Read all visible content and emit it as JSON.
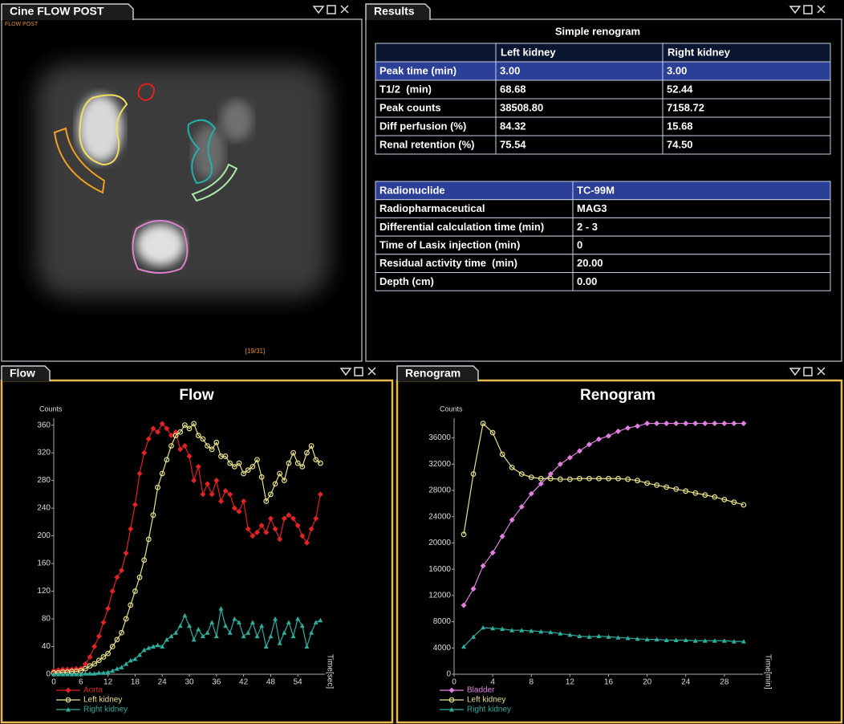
{
  "windows": {
    "cine": {
      "tab": "Cine FLOW POST",
      "label": "FLOW POST",
      "frame": "[19/31]"
    },
    "results": {
      "tab": "Results"
    },
    "flow": {
      "tab": "Flow"
    },
    "renogram": {
      "tab": "Renogram"
    }
  },
  "results": {
    "title": "Simple renogram",
    "table1": {
      "header": [
        "Left kidney",
        "Right kidney"
      ],
      "rows": [
        [
          "Peak time (min)",
          "3.00",
          "3.00"
        ],
        [
          "T1/2  (min)",
          "68.68",
          "52.44"
        ],
        [
          "Peak counts",
          "38508.80",
          "7158.72"
        ],
        [
          "Diff perfusion (%)",
          "84.32",
          "15.68"
        ],
        [
          "Renal retention (%)",
          "75.54",
          "74.50"
        ]
      ]
    },
    "table2": {
      "rows": [
        [
          "Radionuclide",
          "TC-99M"
        ],
        [
          "Radiopharmaceutical",
          "MAG3"
        ],
        [
          "Differential calculation time (min)",
          "2 - 3"
        ],
        [
          "Time of Lasix injection (min)",
          "0"
        ],
        [
          "Residual activity time  (min)",
          "20.00"
        ],
        [
          "Depth (cm)",
          "0.00"
        ]
      ]
    }
  },
  "chart_data": [
    {
      "type": "line",
      "title": "Flow",
      "y_label": "Counts",
      "x_label": "Time[sec]",
      "x": [
        0,
        1,
        2,
        3,
        4,
        5,
        6,
        7,
        8,
        9,
        10,
        11,
        12,
        13,
        14,
        15,
        16,
        17,
        18,
        19,
        20,
        21,
        22,
        23,
        24,
        25,
        26,
        27,
        28,
        29,
        30,
        31,
        32,
        33,
        34,
        35,
        36,
        37,
        38,
        39,
        40,
        41,
        42,
        43,
        44,
        45,
        46,
        47,
        48,
        49,
        50,
        51,
        52,
        53,
        54,
        55,
        56,
        57,
        58,
        59
      ],
      "xlim": [
        0,
        60
      ],
      "xticks": [
        0,
        6,
        12,
        18,
        24,
        30,
        36,
        42,
        48,
        54
      ],
      "ylim": [
        0,
        370
      ],
      "yticks": [
        0,
        40,
        80,
        120,
        160,
        200,
        240,
        280,
        320,
        360
      ],
      "series": [
        {
          "name": "Aorta",
          "color": "#e02424",
          "marker": "diamond",
          "values": [
            5,
            6,
            7,
            7,
            7,
            8,
            8,
            15,
            25,
            40,
            55,
            75,
            95,
            120,
            140,
            150,
            175,
            210,
            245,
            290,
            320,
            340,
            355,
            350,
            362,
            355,
            345,
            350,
            325,
            330,
            315,
            280,
            300,
            260,
            275,
            260,
            280,
            250,
            265,
            260,
            240,
            235,
            250,
            210,
            200,
            205,
            215,
            205,
            225,
            210,
            195,
            225,
            230,
            225,
            215,
            200,
            190,
            210,
            225,
            260
          ]
        },
        {
          "name": "Left kidney",
          "color": "#e8e28c",
          "marker": "circle",
          "values": [
            2,
            2,
            3,
            3,
            4,
            4,
            5,
            8,
            12,
            15,
            20,
            25,
            30,
            40,
            50,
            60,
            80,
            100,
            120,
            140,
            165,
            195,
            230,
            270,
            290,
            310,
            330,
            345,
            350,
            360,
            355,
            362,
            345,
            340,
            330,
            325,
            335,
            315,
            315,
            305,
            300,
            305,
            290,
            295,
            300,
            310,
            285,
            250,
            260,
            275,
            290,
            280,
            305,
            320,
            305,
            300,
            320,
            330,
            310,
            305
          ]
        },
        {
          "name": "Right kidney",
          "color": "#2fae9e",
          "marker": "triangle",
          "values": [
            0,
            0,
            0,
            0,
            0,
            0,
            0,
            1,
            1,
            1,
            2,
            2,
            3,
            5,
            8,
            10,
            15,
            20,
            22,
            28,
            35,
            38,
            40,
            42,
            40,
            50,
            55,
            60,
            70,
            85,
            70,
            50,
            65,
            55,
            60,
            75,
            55,
            95,
            70,
            60,
            80,
            75,
            55,
            60,
            75,
            55,
            70,
            40,
            55,
            80,
            45,
            60,
            75,
            55,
            80,
            70,
            40,
            60,
            75,
            78
          ]
        }
      ]
    },
    {
      "type": "line",
      "title": "Renogram",
      "y_label": "Counts",
      "x_label": "Time[min]",
      "x": [
        1,
        2,
        3,
        4,
        5,
        6,
        7,
        8,
        9,
        10,
        11,
        12,
        13,
        14,
        15,
        16,
        17,
        18,
        19,
        20,
        21,
        22,
        23,
        24,
        25,
        26,
        27,
        28,
        29,
        30
      ],
      "xlim": [
        0,
        32
      ],
      "xticks": [
        0,
        4,
        8,
        12,
        16,
        20,
        24,
        28
      ],
      "ylim": [
        0,
        39000
      ],
      "yticks": [
        0,
        4000,
        8000,
        12000,
        16000,
        20000,
        24000,
        28000,
        32000,
        36000
      ],
      "series": [
        {
          "name": "Bladder",
          "color": "#e080e0",
          "marker": "diamond",
          "values": [
            10500,
            13000,
            16500,
            18500,
            21000,
            23500,
            25500,
            27500,
            29000,
            30500,
            32000,
            33000,
            34000,
            35000,
            35800,
            36300,
            37000,
            37500,
            37800,
            38200,
            38200,
            38200,
            38200,
            38200,
            38200,
            38200,
            38200,
            38200,
            38200,
            38200
          ]
        },
        {
          "name": "Left kidney",
          "color": "#e8e28c",
          "marker": "circle",
          "values": [
            21300,
            30500,
            38200,
            36800,
            33500,
            31500,
            30500,
            30000,
            29800,
            29800,
            29700,
            29700,
            29800,
            29800,
            29800,
            29800,
            29800,
            29700,
            29500,
            29100,
            28800,
            28500,
            28200,
            27900,
            27600,
            27300,
            27000,
            26600,
            26200,
            25800
          ]
        },
        {
          "name": "Right kidney",
          "color": "#2fae9e",
          "marker": "triangle",
          "values": [
            4200,
            5700,
            7100,
            7000,
            6900,
            6700,
            6700,
            6600,
            6500,
            6400,
            6200,
            6000,
            5800,
            5700,
            5800,
            5700,
            5600,
            5500,
            5400,
            5300,
            5300,
            5200,
            5200,
            5200,
            5100,
            5100,
            5100,
            5100,
            5000,
            5000
          ]
        }
      ]
    }
  ]
}
